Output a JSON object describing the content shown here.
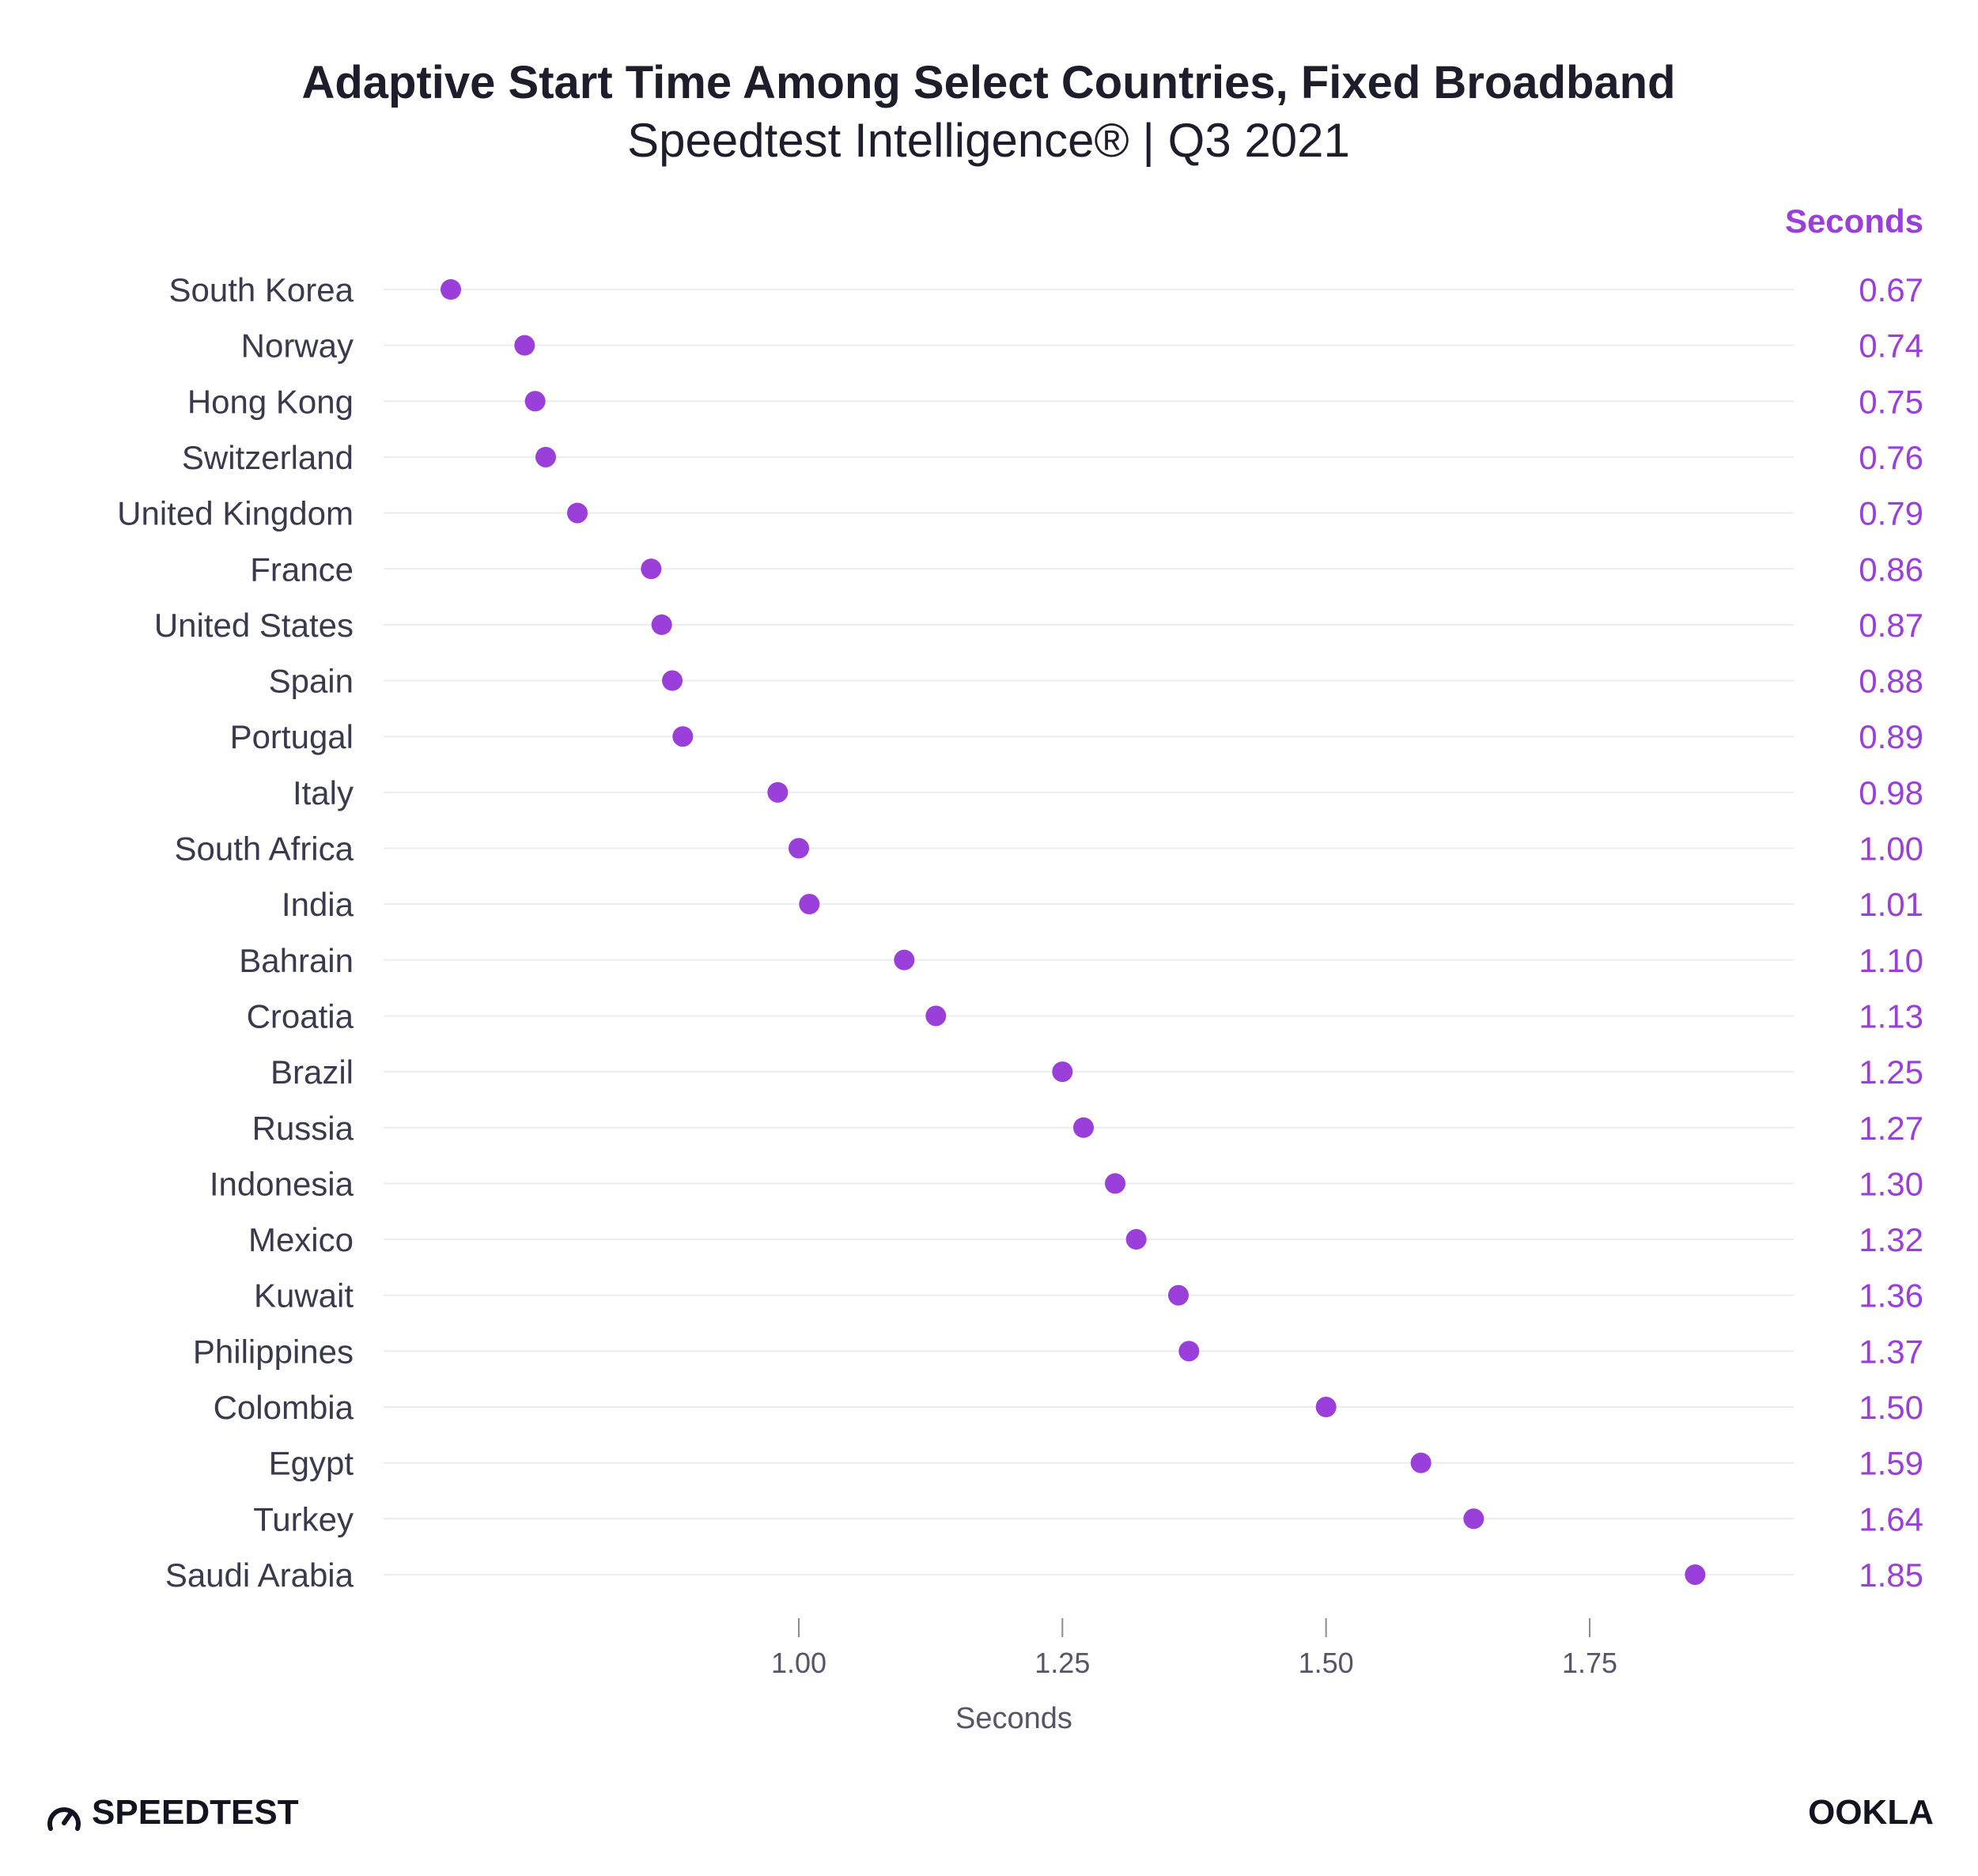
{
  "chart_data": {
    "type": "scatter",
    "title": "Adaptive Start Time Among Select Countries, Fixed Broadband",
    "subtitle": "Speedtest Intelligence® | Q3 2021",
    "column_header": "Seconds",
    "xlabel": "Seconds",
    "ylabel": "",
    "xlim": [
      0.6,
      1.95
    ],
    "xticks": [
      "1.00",
      "1.25",
      "1.50",
      "1.75"
    ],
    "grid": true,
    "legend": "none",
    "categories": [
      "South Korea",
      "Norway",
      "Hong Kong",
      "Switzerland",
      "United Kingdom",
      "France",
      "United States",
      "Spain",
      "Portugal",
      "Italy",
      "South Africa",
      "India",
      "Bahrain",
      "Croatia",
      "Brazil",
      "Russia",
      "Indonesia",
      "Mexico",
      "Kuwait",
      "Philippines",
      "Colombia",
      "Egypt",
      "Turkey",
      "Saudi Arabia"
    ],
    "values": [
      0.67,
      0.74,
      0.75,
      0.76,
      0.79,
      0.86,
      0.87,
      0.88,
      0.89,
      0.98,
      1.0,
      1.01,
      1.1,
      1.13,
      1.25,
      1.27,
      1.3,
      1.32,
      1.36,
      1.37,
      1.5,
      1.59,
      1.64,
      1.85
    ],
    "value_labels": [
      "0.67",
      "0.74",
      "0.75",
      "0.76",
      "0.79",
      "0.86",
      "0.87",
      "0.88",
      "0.89",
      "0.98",
      "1.00",
      "1.01",
      "1.10",
      "1.13",
      "1.25",
      "1.27",
      "1.30",
      "1.32",
      "1.36",
      "1.37",
      "1.50",
      "1.59",
      "1.64",
      "1.85"
    ],
    "marker_color": "#9a3fd9"
  },
  "footer": {
    "left_logo": "SPEEDTEST",
    "right_logo": "OOKLA"
  }
}
